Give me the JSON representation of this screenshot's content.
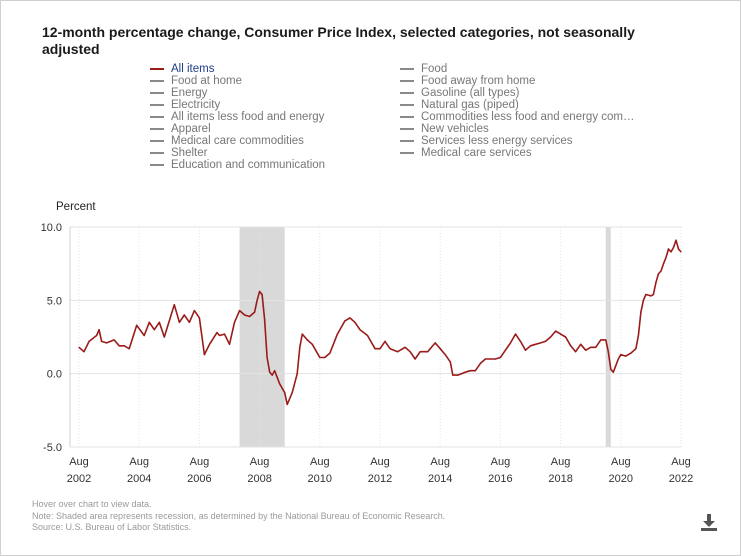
{
  "title": "12-month percentage change, Consumer Price Index, selected categories, not seasonally adjusted",
  "legend": {
    "left": [
      "All items",
      "Food at home",
      "Energy",
      "Electricity",
      "All items less food and energy",
      "Apparel",
      "Medical care commodities",
      "Shelter",
      "Education and communication"
    ],
    "right": [
      "Food",
      "Food away from home",
      "Gasoline (all types)",
      "Natural gas (piped)",
      "Commodities less food and energy com…",
      "New vehicles",
      "Services less energy services",
      "Medical care services"
    ],
    "active": "All items"
  },
  "colors": {
    "series": "#9b1b1b",
    "recession": "#d9d9d9",
    "inactive": "#8a8a8a",
    "grid": "#e3e3e3"
  },
  "notes": [
    "Hover over chart to view data.",
    "Note: Shaded area represents recession, as determined by the National Bureau of Economic Research.",
    "Source: U.S. Bureau of Labor Statistics."
  ],
  "download_icon": "download-icon",
  "chart_data": {
    "type": "line",
    "title": "12-month percentage change, Consumer Price Index, selected categories, not seasonally adjusted",
    "ylabel": "Percent",
    "xlabel": "",
    "ylim": [
      -5.0,
      10.0
    ],
    "yticks": [
      "10.0",
      "5.0",
      "0.0",
      "-5.0"
    ],
    "ytick_values": [
      10,
      5,
      0,
      -5
    ],
    "xticks": [
      {
        "month": "Aug",
        "year": "2002",
        "t": 2002.583
      },
      {
        "month": "Aug",
        "year": "2004",
        "t": 2004.583
      },
      {
        "month": "Aug",
        "year": "2006",
        "t": 2006.583
      },
      {
        "month": "Aug",
        "year": "2008",
        "t": 2008.583
      },
      {
        "month": "Aug",
        "year": "2010",
        "t": 2010.583
      },
      {
        "month": "Aug",
        "year": "2012",
        "t": 2012.583
      },
      {
        "month": "Aug",
        "year": "2014",
        "t": 2014.583
      },
      {
        "month": "Aug",
        "year": "2016",
        "t": 2016.583
      },
      {
        "month": "Aug",
        "year": "2018",
        "t": 2018.583
      },
      {
        "month": "Aug",
        "year": "2020",
        "t": 2020.583
      },
      {
        "month": "Aug",
        "year": "2022",
        "t": 2022.583
      }
    ],
    "xlim": [
      2002.583,
      2022.583
    ],
    "recessions": [
      [
        2007.917,
        2009.417
      ],
      [
        2020.083,
        2020.25
      ]
    ],
    "series": [
      {
        "name": "All items",
        "points": [
          [
            2002.583,
            1.8
          ],
          [
            2002.75,
            1.5
          ],
          [
            2002.917,
            2.2
          ],
          [
            2003.167,
            2.6
          ],
          [
            2003.25,
            3.0
          ],
          [
            2003.333,
            2.2
          ],
          [
            2003.5,
            2.1
          ],
          [
            2003.75,
            2.3
          ],
          [
            2003.917,
            1.9
          ],
          [
            2004.083,
            1.9
          ],
          [
            2004.25,
            1.7
          ],
          [
            2004.5,
            3.3
          ],
          [
            2004.75,
            2.6
          ],
          [
            2004.917,
            3.5
          ],
          [
            2005.083,
            3.0
          ],
          [
            2005.25,
            3.5
          ],
          [
            2005.417,
            2.5
          ],
          [
            2005.583,
            3.6
          ],
          [
            2005.75,
            4.7
          ],
          [
            2005.917,
            3.5
          ],
          [
            2006.083,
            4.0
          ],
          [
            2006.25,
            3.5
          ],
          [
            2006.417,
            4.3
          ],
          [
            2006.583,
            3.8
          ],
          [
            2006.75,
            1.3
          ],
          [
            2006.917,
            2.0
          ],
          [
            2007.167,
            2.8
          ],
          [
            2007.25,
            2.6
          ],
          [
            2007.417,
            2.7
          ],
          [
            2007.583,
            2.0
          ],
          [
            2007.75,
            3.5
          ],
          [
            2007.917,
            4.3
          ],
          [
            2008.083,
            4.0
          ],
          [
            2008.25,
            3.9
          ],
          [
            2008.417,
            4.2
          ],
          [
            2008.5,
            5.0
          ],
          [
            2008.583,
            5.6
          ],
          [
            2008.667,
            5.4
          ],
          [
            2008.75,
            3.7
          ],
          [
            2008.833,
            1.1
          ],
          [
            2008.917,
            0.1
          ],
          [
            2009.0,
            -0.1
          ],
          [
            2009.083,
            0.2
          ],
          [
            2009.25,
            -0.7
          ],
          [
            2009.417,
            -1.3
          ],
          [
            2009.5,
            -2.1
          ],
          [
            2009.667,
            -1.3
          ],
          [
            2009.833,
            0.0
          ],
          [
            2009.917,
            1.8
          ],
          [
            2010.0,
            2.7
          ],
          [
            2010.167,
            2.3
          ],
          [
            2010.333,
            2.0
          ],
          [
            2010.583,
            1.1
          ],
          [
            2010.75,
            1.1
          ],
          [
            2010.917,
            1.4
          ],
          [
            2011.167,
            2.7
          ],
          [
            2011.417,
            3.6
          ],
          [
            2011.583,
            3.8
          ],
          [
            2011.75,
            3.5
          ],
          [
            2011.917,
            3.0
          ],
          [
            2012.167,
            2.6
          ],
          [
            2012.417,
            1.7
          ],
          [
            2012.583,
            1.7
          ],
          [
            2012.75,
            2.2
          ],
          [
            2012.917,
            1.7
          ],
          [
            2013.167,
            1.5
          ],
          [
            2013.417,
            1.8
          ],
          [
            2013.583,
            1.5
          ],
          [
            2013.75,
            1.0
          ],
          [
            2013.917,
            1.5
          ],
          [
            2014.167,
            1.5
          ],
          [
            2014.417,
            2.1
          ],
          [
            2014.583,
            1.7
          ],
          [
            2014.75,
            1.3
          ],
          [
            2014.917,
            0.8
          ],
          [
            2015.0,
            -0.1
          ],
          [
            2015.167,
            -0.1
          ],
          [
            2015.417,
            0.1
          ],
          [
            2015.583,
            0.2
          ],
          [
            2015.75,
            0.2
          ],
          [
            2015.917,
            0.7
          ],
          [
            2016.083,
            1.0
          ],
          [
            2016.25,
            1.0
          ],
          [
            2016.417,
            1.0
          ],
          [
            2016.583,
            1.1
          ],
          [
            2016.75,
            1.6
          ],
          [
            2016.917,
            2.1
          ],
          [
            2017.083,
            2.7
          ],
          [
            2017.25,
            2.2
          ],
          [
            2017.417,
            1.6
          ],
          [
            2017.583,
            1.9
          ],
          [
            2017.75,
            2.0
          ],
          [
            2017.917,
            2.1
          ],
          [
            2018.083,
            2.2
          ],
          [
            2018.25,
            2.5
          ],
          [
            2018.417,
            2.9
          ],
          [
            2018.583,
            2.7
          ],
          [
            2018.75,
            2.5
          ],
          [
            2018.917,
            1.9
          ],
          [
            2019.083,
            1.5
          ],
          [
            2019.25,
            2.0
          ],
          [
            2019.417,
            1.6
          ],
          [
            2019.583,
            1.8
          ],
          [
            2019.75,
            1.8
          ],
          [
            2019.917,
            2.3
          ],
          [
            2020.083,
            2.3
          ],
          [
            2020.167,
            1.5
          ],
          [
            2020.25,
            0.3
          ],
          [
            2020.333,
            0.1
          ],
          [
            2020.5,
            1.0
          ],
          [
            2020.583,
            1.3
          ],
          [
            2020.75,
            1.2
          ],
          [
            2020.917,
            1.4
          ],
          [
            2021.083,
            1.7
          ],
          [
            2021.167,
            2.6
          ],
          [
            2021.25,
            4.2
          ],
          [
            2021.333,
            5.0
          ],
          [
            2021.417,
            5.4
          ],
          [
            2021.583,
            5.3
          ],
          [
            2021.667,
            5.4
          ],
          [
            2021.75,
            6.2
          ],
          [
            2021.833,
            6.8
          ],
          [
            2021.917,
            7.0
          ],
          [
            2022.0,
            7.5
          ],
          [
            2022.083,
            7.9
          ],
          [
            2022.167,
            8.5
          ],
          [
            2022.25,
            8.3
          ],
          [
            2022.333,
            8.6
          ],
          [
            2022.417,
            9.1
          ],
          [
            2022.5,
            8.5
          ],
          [
            2022.583,
            8.3
          ]
        ]
      }
    ]
  }
}
